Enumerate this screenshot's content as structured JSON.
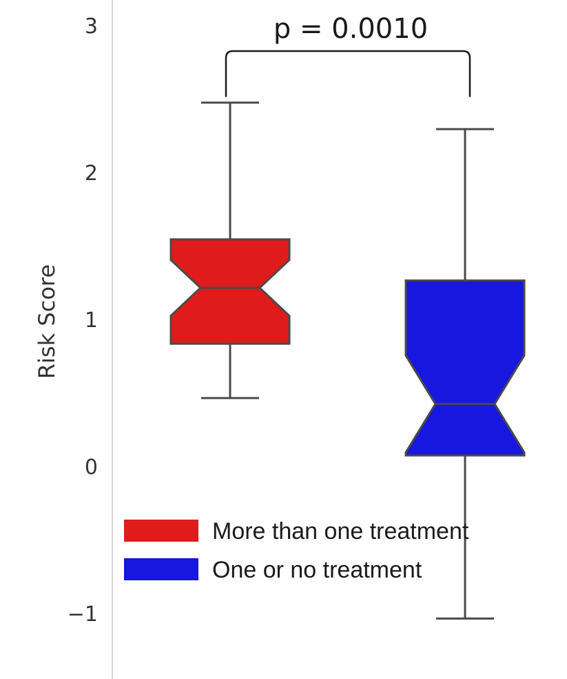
{
  "chart_data": {
    "type": "boxplot",
    "notched": true,
    "ylabel": "Risk Score",
    "ylim": [
      -1.25,
      3.2
    ],
    "yticks": [
      {
        "value": 3,
        "label": "3"
      },
      {
        "value": 2,
        "label": "2"
      },
      {
        "value": 1,
        "label": "1"
      },
      {
        "value": 0,
        "label": "0"
      },
      {
        "value": -1,
        "label": "−1"
      }
    ],
    "grid": false,
    "legend_position": "lower-left",
    "series": [
      {
        "name": "More than one treatment",
        "color": "#e01b1b",
        "whisker_low": 0.47,
        "q1": 0.84,
        "median": 1.22,
        "q3": 1.55,
        "whisker_high": 2.48,
        "notch_low": 1.03,
        "notch_high": 1.41
      },
      {
        "name": "One or no treatment",
        "color": "#1717e0",
        "whisker_low": -1.03,
        "q1": 0.08,
        "median": 0.43,
        "q3": 1.27,
        "whisker_high": 2.3,
        "notch_low": 0.1,
        "notch_high": 0.76
      }
    ],
    "annotation": {
      "text": "p = 0.0010",
      "bracket_top": 2.85,
      "bracket_bottom": 2.65
    }
  }
}
